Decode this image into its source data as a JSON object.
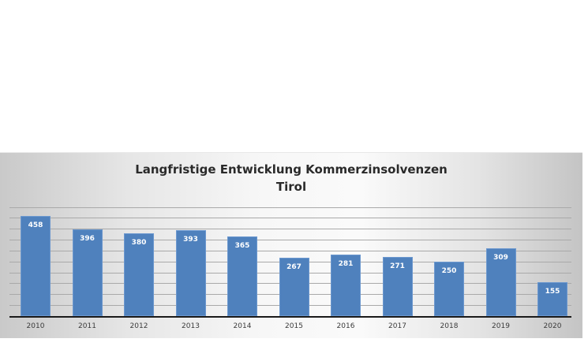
{
  "chart_data": {
    "type": "bar",
    "title": "Langfristige Entwicklung Kommerzinsolvenzen",
    "subtitle": "Tirol",
    "categories": [
      "2010",
      "2011",
      "2012",
      "2013",
      "2014",
      "2015",
      "2016",
      "2017",
      "2018",
      "2019",
      "2020"
    ],
    "values": [
      458,
      396,
      380,
      393,
      365,
      267,
      281,
      271,
      250,
      309,
      155
    ],
    "xlabel": "",
    "ylabel": "",
    "ylim": [
      0,
      500
    ],
    "grid": true,
    "data_labels": true,
    "legend": "none",
    "bar_color": "#4f81bd"
  },
  "labels": {
    "title_line1": "Langfristige Entwicklung Kommerzinsolvenzen",
    "title_line2": "Tirol"
  }
}
